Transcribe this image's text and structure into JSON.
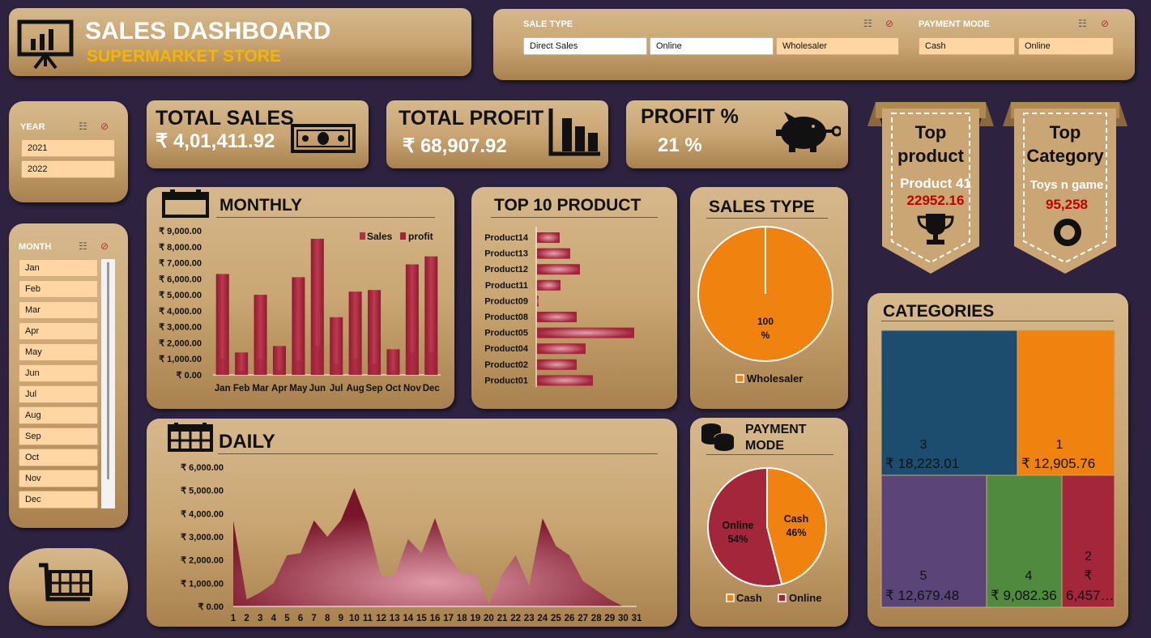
{
  "header": {
    "title": "SALES DASHBOARD",
    "subtitle": "SUPERMARKET STORE"
  },
  "filters": {
    "sale_type": {
      "label": "SALE TYPE",
      "options": [
        "Direct Sales",
        "Online",
        "Wholesaler"
      ]
    },
    "payment_mode": {
      "label": "PAYMENT MODE",
      "options": [
        "Cash",
        "Online"
      ]
    }
  },
  "year_slicer": {
    "label": "YEAR",
    "options": [
      "2021",
      "2022"
    ]
  },
  "month_slicer": {
    "label": "MONTH",
    "options": [
      "Jan",
      "Feb",
      "Mar",
      "Apr",
      "May",
      "Jun",
      "Jul",
      "Aug",
      "Sep",
      "Oct",
      "Nov",
      "Dec"
    ]
  },
  "kpis": {
    "total_sales": {
      "label": "TOTAL SALES",
      "value": "₹ 4,01,411.92"
    },
    "total_profit": {
      "label": "TOTAL PROFIT",
      "value": "₹ 68,907.92"
    },
    "profit_pct": {
      "label": "PROFIT %",
      "value": "21 %"
    }
  },
  "top_product": {
    "line1": "Top",
    "line2": "product",
    "name": "Product 41",
    "value": "22952.16"
  },
  "top_category": {
    "line1": "Top",
    "line2": "Category",
    "name": "Toys n game",
    "value": "95,258"
  },
  "colors": {
    "bg": "#2d2240",
    "bar": "#a3243a",
    "orange": "#f08310",
    "crimson": "#a3263a"
  },
  "chart_data": [
    {
      "type": "bar",
      "title": "MONTHLY",
      "categories": [
        "Jan",
        "Feb",
        "Mar",
        "Apr",
        "May",
        "Jun",
        "Jul",
        "Aug",
        "Sep",
        "Oct",
        "Nov",
        "Dec"
      ],
      "series": [
        {
          "name": "Sales",
          "values": [
            6300,
            1400,
            5000,
            1800,
            6100,
            8500,
            3600,
            5200,
            5300,
            1600,
            6900,
            7400
          ]
        },
        {
          "name": "profit",
          "values": [
            1000,
            250,
            1000,
            300,
            900,
            1800,
            700,
            1000,
            700,
            250,
            1400,
            1400
          ]
        }
      ],
      "ylim": [
        0,
        9000
      ],
      "yticks": [
        "₹ 0.00",
        "₹ 1,000.00",
        "₹ 2,000.00",
        "₹ 3,000.00",
        "₹ 4,000.00",
        "₹ 5,000.00",
        "₹ 6,000.00",
        "₹ 7,000.00",
        "₹ 8,000.00",
        "₹ 9,000.00"
      ]
    },
    {
      "type": "bar",
      "title": "TOP 10 PRODUCT",
      "categories": [
        "Product14",
        "Product13",
        "Product12",
        "Product11",
        "Product09",
        "Product08",
        "Product05",
        "Product04",
        "Product02",
        "Product01"
      ],
      "values": [
        140,
        205,
        265,
        145,
        10,
        245,
        600,
        300,
        245,
        345
      ]
    },
    {
      "type": "pie",
      "title": "SALES TYPE",
      "labels": [
        "Wholesaler"
      ],
      "values": [
        100
      ],
      "data_labels": [
        "100",
        "%"
      ],
      "legend": [
        "Wholesaler"
      ]
    },
    {
      "type": "area",
      "title": "DAILY",
      "x": [
        "1",
        "2",
        "3",
        "4",
        "5",
        "6",
        "7",
        "8",
        "9",
        "10",
        "11",
        "12",
        "13",
        "14",
        "15",
        "16",
        "17",
        "18",
        "19",
        "20",
        "21",
        "22",
        "23",
        "24",
        "25",
        "26",
        "27",
        "28",
        "29",
        "30",
        "31"
      ],
      "values": [
        3700,
        300,
        600,
        1000,
        2200,
        2300,
        3700,
        3000,
        3700,
        5100,
        3600,
        1300,
        1300,
        2900,
        2300,
        3800,
        2200,
        1400,
        1400,
        100,
        1400,
        2200,
        900,
        3800,
        2600,
        2200,
        1100,
        700,
        300,
        0,
        0
      ],
      "ylim": [
        0,
        6000
      ],
      "yticks": [
        "₹ 0.00",
        "₹ 1,000.00",
        "₹ 2,000.00",
        "₹ 3,000.00",
        "₹ 4,000.00",
        "₹ 5,000.00",
        "₹ 6,000.00"
      ]
    },
    {
      "type": "pie",
      "title": "PAYMENT MODE",
      "title_lines": [
        "PAYMENT",
        "MODE"
      ],
      "labels": [
        "Cash",
        "Online"
      ],
      "values": [
        46,
        54
      ],
      "data_labels": [
        [
          "Cash",
          "46%"
        ],
        [
          "Online",
          "54%"
        ]
      ],
      "legend": [
        "Cash",
        "Online"
      ]
    },
    {
      "type": "treemap",
      "title": "CATEGORIES",
      "items": [
        {
          "label": "3",
          "value": "₹ 18,223.01",
          "color": "#1c4d6e"
        },
        {
          "label": "1",
          "value": "₹ 12,905.76",
          "color": "#f08310"
        },
        {
          "label": "5",
          "value": "₹ 12,679.48",
          "color": "#5a4478"
        },
        {
          "label": "4",
          "value": "₹ 9,082.36",
          "color": "#4f8a3f"
        },
        {
          "label": "2",
          "label2": "₹",
          "value": "6,457…",
          "color": "#a3263a"
        }
      ]
    }
  ]
}
